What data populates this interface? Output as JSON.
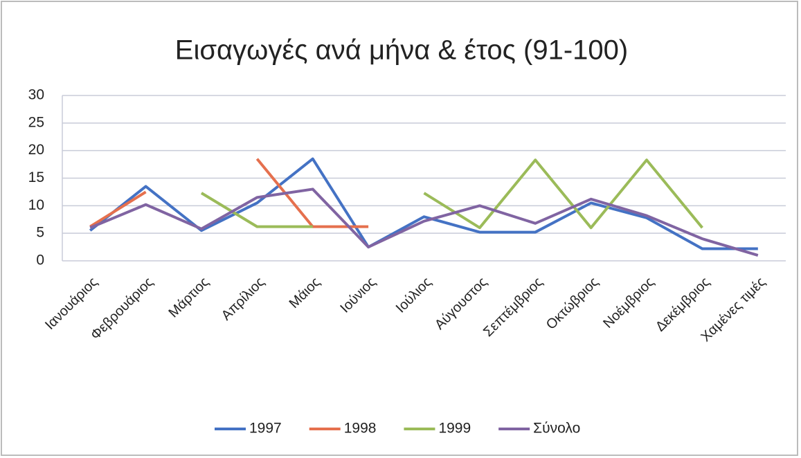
{
  "chart_data": {
    "type": "line",
    "title": "Εισαγωγές ανά μήνα & έτος (91-100)",
    "categories": [
      "Ιανουάριος",
      "Φεβρουάριος",
      "Μάρτιος",
      "Απρίλιος",
      "Μάιος",
      "Ιούνιος",
      "Ιούλιος",
      "Αύγουστος",
      "Σεπτέμβριος",
      "Οκτώβριος",
      "Νοέμβριος",
      "Δεκέμβριος",
      "Χαμένες τιμές"
    ],
    "series": [
      {
        "name": "1997",
        "color": "#4472c4",
        "values": [
          5.5,
          13.5,
          5.5,
          10.5,
          18.5,
          2.5,
          8,
          5.2,
          5.2,
          10.5,
          7.8,
          2.2,
          2.2
        ]
      },
      {
        "name": "1998",
        "color": "#e5704e",
        "values": [
          6.2,
          12.5,
          null,
          18.5,
          6.2,
          6.2,
          null,
          null,
          null,
          null,
          null,
          null,
          null
        ]
      },
      {
        "name": "1999",
        "color": "#9bbb59",
        "values": [
          null,
          null,
          12.3,
          6.2,
          6.2,
          null,
          12.3,
          6,
          18.3,
          6,
          18.3,
          6,
          null
        ]
      },
      {
        "name": "Σύνολο",
        "color": "#8064a2",
        "values": [
          6,
          10.2,
          5.8,
          11.5,
          13,
          2.5,
          7.2,
          10,
          6.8,
          11.2,
          8.2,
          4,
          1
        ]
      }
    ],
    "ylim": [
      0,
      30
    ],
    "yticks": [
      0,
      5,
      10,
      15,
      20,
      25,
      30
    ],
    "grid": true,
    "legend": "bottom"
  }
}
